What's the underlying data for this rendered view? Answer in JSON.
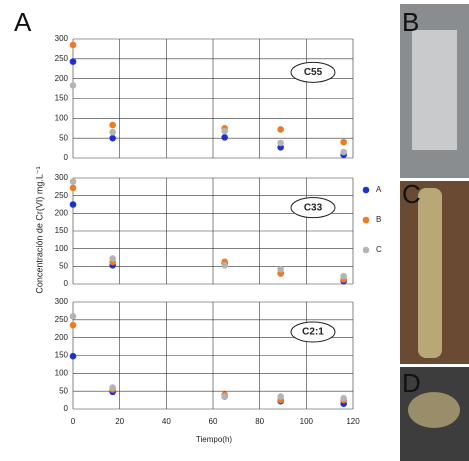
{
  "figure_labels": [
    "A",
    "B",
    "C",
    "D"
  ],
  "chart_data": {
    "type": "scatter",
    "xlabel": "Tiempo(h)",
    "ylabel": "Concentración de Cr(VI) mg.L⁻¹",
    "x": [
      0,
      17,
      65,
      89,
      116
    ],
    "xlim": [
      0,
      120
    ],
    "xticks": [
      0,
      20,
      40,
      60,
      80,
      100,
      120
    ],
    "ylim": [
      0,
      300
    ],
    "yticks": [
      0,
      50,
      100,
      150,
      200,
      250,
      300
    ],
    "grid": true,
    "series": [
      {
        "name": "A",
        "color": "#1f2fd6"
      },
      {
        "name": "B",
        "color": "#f07a22"
      },
      {
        "name": "C",
        "color": "#b4b4b4"
      }
    ],
    "panels": [
      {
        "label": "C55",
        "values": [
          [
            243,
            50,
            52,
            27,
            8
          ],
          [
            285,
            83,
            75,
            72,
            40
          ],
          [
            183,
            65,
            68,
            38,
            15
          ]
        ]
      },
      {
        "label": "C33",
        "values": [
          [
            225,
            53,
            58,
            30,
            8
          ],
          [
            272,
            62,
            63,
            30,
            13
          ],
          [
            290,
            72,
            53,
            42,
            22
          ]
        ]
      },
      {
        "label": "C2:1",
        "values": [
          [
            148,
            48,
            35,
            22,
            15
          ],
          [
            235,
            55,
            40,
            25,
            25
          ],
          [
            260,
            60,
            35,
            35,
            30
          ]
        ]
      }
    ]
  }
}
